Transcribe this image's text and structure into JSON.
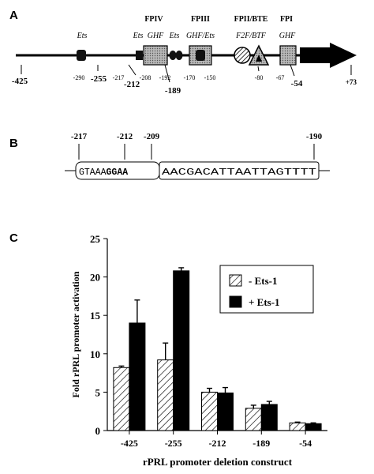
{
  "panel_a": {
    "letter": "A",
    "elements": [
      {
        "top": "Ets",
        "family": ""
      },
      {
        "top": "Ets",
        "family": ""
      },
      {
        "top": "GHF",
        "family": "FPIV"
      },
      {
        "top": "Ets",
        "family": ""
      },
      {
        "top": "GHF/Ets",
        "family": "FPIII"
      },
      {
        "top": "F2F/BTF",
        "family": "FPII/BTE"
      },
      {
        "top": "GHF",
        "family": "FPI"
      }
    ],
    "big_positions": [
      "-425",
      "-255",
      "-212",
      "-189",
      "-54",
      "+73"
    ],
    "small_positions": [
      "-290",
      "-217",
      "-208",
      "-192",
      "-170",
      "-150",
      "-80",
      "-67"
    ]
  },
  "panel_b": {
    "letter": "B",
    "positions": [
      "-217",
      "-212",
      "-209",
      "-190"
    ],
    "seq1_plain": "GTAAA",
    "seq1_bold": "GGAA",
    "seq2": "AACGACATTAATTAGTTTT"
  },
  "chart_data": {
    "letter": "C",
    "type": "bar",
    "ylabel": "Fold rPRL promoter activation",
    "xlabel": "rPRL promoter deletion construct",
    "ylim": [
      0,
      25
    ],
    "yticks": [
      "0",
      "5",
      "10",
      "15",
      "20",
      "25"
    ],
    "categories": [
      "-425",
      "-255",
      "-212",
      "-189",
      "-54"
    ],
    "series": [
      {
        "name": "- Ets-1",
        "pattern": "hatched",
        "values": [
          8.2,
          9.2,
          5.0,
          2.9,
          1.0
        ],
        "errors": [
          0.2,
          2.2,
          0.5,
          0.4,
          0.1
        ]
      },
      {
        "name": "+ Ets-1",
        "pattern": "solid",
        "color": "#000000",
        "values": [
          14.0,
          20.8,
          4.9,
          3.4,
          0.9
        ],
        "errors": [
          3.0,
          0.4,
          0.7,
          0.4,
          0.1
        ]
      }
    ],
    "legend": "top-right"
  }
}
